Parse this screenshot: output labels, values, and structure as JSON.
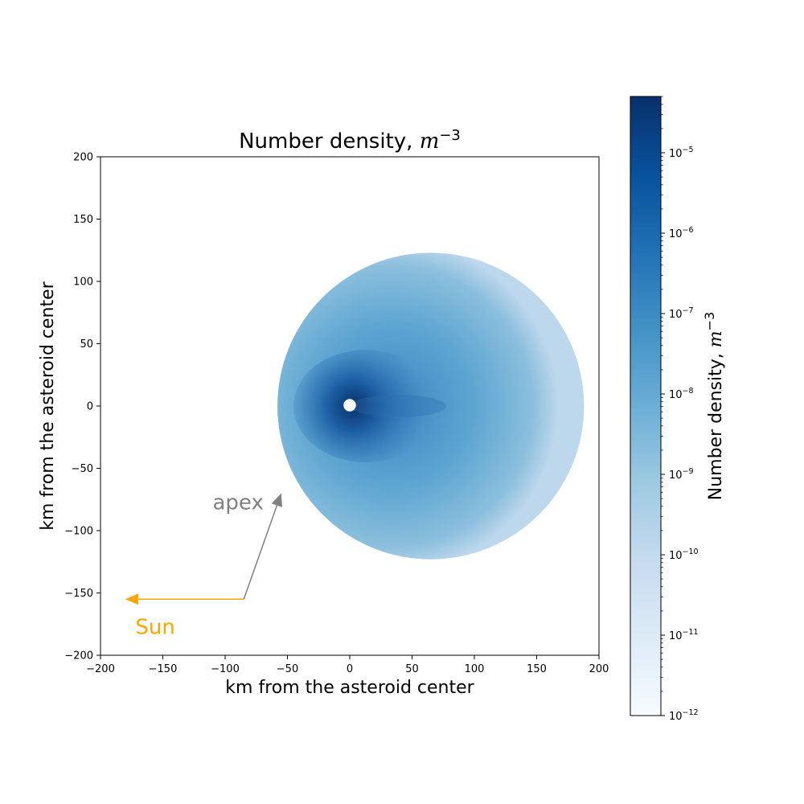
{
  "chart_data": {
    "type": "heatmap",
    "title_main": "Number density, ",
    "title_unit_base": "m",
    "title_unit_exp": "−3",
    "xlabel": "km from the asteroid center",
    "ylabel": "km from the asteroid center",
    "xlim": [
      -200,
      200
    ],
    "ylim": [
      -200,
      200
    ],
    "xticks": [
      -200,
      -150,
      -100,
      -50,
      0,
      50,
      100,
      150,
      200
    ],
    "yticks": [
      -200,
      -150,
      -100,
      -50,
      0,
      50,
      100,
      150,
      200
    ],
    "xtick_labels": [
      "−200",
      "−150",
      "−100",
      "−50",
      "0",
      "50",
      "100",
      "150",
      "200"
    ],
    "ytick_labels": [
      "−200",
      "−150",
      "−100",
      "−50",
      "0",
      "50",
      "100",
      "150",
      "200"
    ],
    "cloud": {
      "center_x": 65,
      "center_y": 0,
      "radius": 123,
      "source_x": 0,
      "source_y": 0,
      "source_radius": 5
    },
    "colorbar": {
      "label_main": "Number density, ",
      "label_unit_base": "m",
      "label_unit_exp": "−3",
      "scale": "log",
      "min_exp": -12,
      "max_exp": -4.3,
      "tick_exps": [
        -12,
        -11,
        -10,
        -9,
        -8,
        -7,
        -6,
        -5
      ],
      "tick_base": "10",
      "tick_exp_labels": [
        "−12",
        "−11",
        "−10",
        "−9",
        "−8",
        "−7",
        "−6",
        "−5"
      ],
      "colormap": "Blues"
    },
    "annotations": {
      "sun_label": "Sun",
      "sun_color": "#ffa500",
      "sun_arrow_from": [
        -85,
        -155
      ],
      "sun_arrow_to": [
        -180,
        -155
      ],
      "apex_label": "apex",
      "apex_color": "#808080",
      "apex_arrow_from": [
        -85,
        -155
      ],
      "apex_arrow_to": [
        -55,
        -70
      ]
    }
  }
}
